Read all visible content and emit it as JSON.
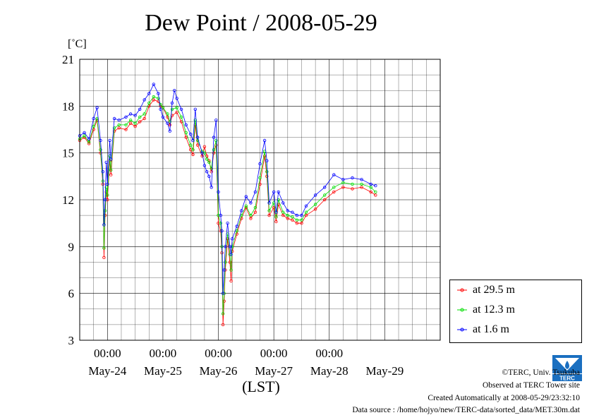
{
  "chart_data": {
    "type": "line",
    "title": "Dew Point / 2008-05-29",
    "ylabel": "[˚C]",
    "xlabel": "(LST)",
    "ylim": [
      3,
      21
    ],
    "yticks": [
      3,
      6,
      9,
      12,
      15,
      18,
      21
    ],
    "x_start": "2008-05-23 12:00",
    "x_end": "2008-05-29 24:00",
    "x_midnight_ticks": [
      "00:00",
      "00:00",
      "00:00",
      "00:00",
      "00:00"
    ],
    "x_day_labels": [
      "May-24",
      "May-25",
      "May-26",
      "May-27",
      "May-28",
      "May-29"
    ],
    "grid": true,
    "legend_position": "bottom-right-outside",
    "series": [
      {
        "name": "at 29.5 m",
        "color": "#ff0000",
        "points": [
          [
            "2008-05-23 12:00",
            15.8
          ],
          [
            "2008-05-23 14:00",
            16.0
          ],
          [
            "2008-05-23 16:00",
            15.6
          ],
          [
            "2008-05-23 18:00",
            16.5
          ],
          [
            "2008-05-23 19:30",
            17.1
          ],
          [
            "2008-05-23 21:00",
            15.0
          ],
          [
            "2008-05-23 22:00",
            13.0
          ],
          [
            "2008-05-23 22:30",
            8.3
          ],
          [
            "2008-05-23 23:00",
            11.0
          ],
          [
            "2008-05-23 23:30",
            12.5
          ],
          [
            "2008-05-24 00:00",
            12.0
          ],
          [
            "2008-05-24 01:00",
            14.5
          ],
          [
            "2008-05-24 01:30",
            13.6
          ],
          [
            "2008-05-24 03:00",
            16.4
          ],
          [
            "2008-05-24 05:00",
            16.6
          ],
          [
            "2008-05-24 08:00",
            16.5
          ],
          [
            "2008-05-24 10:00",
            16.9
          ],
          [
            "2008-05-24 12:00",
            16.7
          ],
          [
            "2008-05-24 14:00",
            17.0
          ],
          [
            "2008-05-24 16:00",
            17.2
          ],
          [
            "2008-05-24 18:00",
            18.0
          ],
          [
            "2008-05-24 20:00",
            18.4
          ],
          [
            "2008-05-24 22:00",
            18.3
          ],
          [
            "2008-05-24 23:00",
            18.0
          ],
          [
            "2008-05-25 00:00",
            17.9
          ],
          [
            "2008-05-25 02:00",
            17.3
          ],
          [
            "2008-05-25 03:00",
            16.8
          ],
          [
            "2008-05-25 04:00",
            17.4
          ],
          [
            "2008-05-25 06:00",
            17.6
          ],
          [
            "2008-05-25 08:00",
            17.0
          ],
          [
            "2008-05-25 10:00",
            16.0
          ],
          [
            "2008-05-25 12:00",
            15.2
          ],
          [
            "2008-05-25 13:00",
            14.9
          ],
          [
            "2008-05-25 14:00",
            16.8
          ],
          [
            "2008-05-25 15:00",
            15.5
          ],
          [
            "2008-05-25 17:00",
            14.8
          ],
          [
            "2008-05-25 18:00",
            15.4
          ],
          [
            "2008-05-25 19:00",
            14.8
          ],
          [
            "2008-05-25 20:00",
            14.5
          ],
          [
            "2008-05-25 21:00",
            13.8
          ],
          [
            "2008-05-25 22:00",
            15.0
          ],
          [
            "2008-05-25 23:00",
            15.5
          ],
          [
            "2008-05-26 00:00",
            10.5
          ],
          [
            "2008-05-26 01:00",
            10.0
          ],
          [
            "2008-05-26 01:30",
            8.6
          ],
          [
            "2008-05-26 02:00",
            4.0
          ],
          [
            "2008-05-26 02:30",
            5.5
          ],
          [
            "2008-05-26 03:00",
            7.5
          ],
          [
            "2008-05-26 04:00",
            9.5
          ],
          [
            "2008-05-26 05:00",
            8.0
          ],
          [
            "2008-05-26 05:30",
            6.8
          ],
          [
            "2008-05-26 06:00",
            8.7
          ],
          [
            "2008-05-26 08:00",
            9.8
          ],
          [
            "2008-05-26 10:00",
            10.8
          ],
          [
            "2008-05-26 12:00",
            11.5
          ],
          [
            "2008-05-26 14:00",
            10.8
          ],
          [
            "2008-05-26 16:00",
            11.2
          ],
          [
            "2008-05-26 18:00",
            13.0
          ],
          [
            "2008-05-26 20:00",
            14.8
          ],
          [
            "2008-05-26 21:00",
            13.5
          ],
          [
            "2008-05-26 22:00",
            11.0
          ],
          [
            "2008-05-27 00:00",
            11.5
          ],
          [
            "2008-05-27 01:00",
            10.6
          ],
          [
            "2008-05-27 02:00",
            11.7
          ],
          [
            "2008-05-27 04:00",
            11.0
          ],
          [
            "2008-05-27 06:00",
            10.8
          ],
          [
            "2008-05-27 08:00",
            10.7
          ],
          [
            "2008-05-27 10:00",
            10.5
          ],
          [
            "2008-05-27 12:00",
            10.5
          ],
          [
            "2008-05-27 14:00",
            11.0
          ],
          [
            "2008-05-27 18:00",
            11.4
          ],
          [
            "2008-05-27 22:00",
            12.0
          ],
          [
            "2008-05-28 02:00",
            12.5
          ],
          [
            "2008-05-28 06:00",
            12.8
          ],
          [
            "2008-05-28 10:00",
            12.7
          ],
          [
            "2008-05-28 14:00",
            12.8
          ],
          [
            "2008-05-28 18:00",
            12.5
          ],
          [
            "2008-05-28 20:00",
            12.3
          ]
        ]
      },
      {
        "name": "at 12.3 m",
        "color": "#00dd00",
        "points": [
          [
            "2008-05-23 12:00",
            15.9
          ],
          [
            "2008-05-23 14:00",
            16.1
          ],
          [
            "2008-05-23 16:00",
            15.7
          ],
          [
            "2008-05-23 18:00",
            16.7
          ],
          [
            "2008-05-23 19:30",
            17.2
          ],
          [
            "2008-05-23 21:00",
            15.2
          ],
          [
            "2008-05-23 22:00",
            13.2
          ],
          [
            "2008-05-23 22:30",
            8.9
          ],
          [
            "2008-05-23 23:00",
            11.3
          ],
          [
            "2008-05-23 23:30",
            12.8
          ],
          [
            "2008-05-24 00:00",
            12.3
          ],
          [
            "2008-05-24 01:00",
            14.8
          ],
          [
            "2008-05-24 01:30",
            13.9
          ],
          [
            "2008-05-24 03:00",
            16.6
          ],
          [
            "2008-05-24 05:00",
            16.8
          ],
          [
            "2008-05-24 08:00",
            16.8
          ],
          [
            "2008-05-24 10:00",
            17.1
          ],
          [
            "2008-05-24 12:00",
            16.9
          ],
          [
            "2008-05-24 14:00",
            17.3
          ],
          [
            "2008-05-24 16:00",
            17.5
          ],
          [
            "2008-05-24 18:00",
            18.2
          ],
          [
            "2008-05-24 20:00",
            18.6
          ],
          [
            "2008-05-24 22:00",
            18.5
          ],
          [
            "2008-05-24 23:00",
            18.1
          ],
          [
            "2008-05-25 00:00",
            17.9
          ],
          [
            "2008-05-25 02:00",
            17.5
          ],
          [
            "2008-05-25 03:00",
            17.0
          ],
          [
            "2008-05-25 04:00",
            17.8
          ],
          [
            "2008-05-25 06:00",
            17.9
          ],
          [
            "2008-05-25 08:00",
            17.3
          ],
          [
            "2008-05-25 10:00",
            16.3
          ],
          [
            "2008-05-25 12:00",
            15.5
          ],
          [
            "2008-05-25 13:00",
            15.2
          ],
          [
            "2008-05-25 14:00",
            17.1
          ],
          [
            "2008-05-25 15:00",
            15.8
          ],
          [
            "2008-05-25 17:00",
            15.1
          ],
          [
            "2008-05-25 18:00",
            15.0
          ],
          [
            "2008-05-25 19:00",
            14.6
          ],
          [
            "2008-05-25 20:00",
            14.4
          ],
          [
            "2008-05-25 21:00",
            14.0
          ],
          [
            "2008-05-25 22:00",
            15.2
          ],
          [
            "2008-05-25 23:00",
            15.8
          ],
          [
            "2008-05-26 00:00",
            11.0
          ],
          [
            "2008-05-26 01:00",
            10.5
          ],
          [
            "2008-05-26 01:30",
            9.0
          ],
          [
            "2008-05-26 02:00",
            4.7
          ],
          [
            "2008-05-26 02:30",
            6.0
          ],
          [
            "2008-05-26 03:00",
            8.0
          ],
          [
            "2008-05-26 04:00",
            9.8
          ],
          [
            "2008-05-26 05:00",
            8.5
          ],
          [
            "2008-05-26 05:30",
            7.5
          ],
          [
            "2008-05-26 06:00",
            9.0
          ],
          [
            "2008-05-26 08:00",
            10.0
          ],
          [
            "2008-05-26 10:00",
            11.0
          ],
          [
            "2008-05-26 12:00",
            11.6
          ],
          [
            "2008-05-26 14:00",
            11.0
          ],
          [
            "2008-05-26 16:00",
            11.5
          ],
          [
            "2008-05-26 18:00",
            13.4
          ],
          [
            "2008-05-26 20:00",
            15.1
          ],
          [
            "2008-05-26 21:00",
            13.8
          ],
          [
            "2008-05-26 22:00",
            11.3
          ],
          [
            "2008-05-27 00:00",
            11.8
          ],
          [
            "2008-05-27 01:00",
            10.9
          ],
          [
            "2008-05-27 02:00",
            12.0
          ],
          [
            "2008-05-27 04:00",
            11.2
          ],
          [
            "2008-05-27 06:00",
            11.0
          ],
          [
            "2008-05-27 08:00",
            10.9
          ],
          [
            "2008-05-27 10:00",
            10.7
          ],
          [
            "2008-05-27 12:00",
            10.7
          ],
          [
            "2008-05-27 14:00",
            11.2
          ],
          [
            "2008-05-27 18:00",
            11.7
          ],
          [
            "2008-05-27 22:00",
            12.3
          ],
          [
            "2008-05-28 02:00",
            12.8
          ],
          [
            "2008-05-28 06:00",
            13.1
          ],
          [
            "2008-05-28 10:00",
            13.0
          ],
          [
            "2008-05-28 14:00",
            13.0
          ],
          [
            "2008-05-28 18:00",
            12.8
          ],
          [
            "2008-05-28 20:00",
            12.5
          ]
        ]
      },
      {
        "name": "at 1.6 m",
        "color": "#0000ff",
        "points": [
          [
            "2008-05-23 12:00",
            16.1
          ],
          [
            "2008-05-23 14:00",
            16.3
          ],
          [
            "2008-05-23 16:00",
            15.9
          ],
          [
            "2008-05-23 18:00",
            17.2
          ],
          [
            "2008-05-23 19:30",
            17.9
          ],
          [
            "2008-05-23 21:00",
            15.8
          ],
          [
            "2008-05-23 22:00",
            13.8
          ],
          [
            "2008-05-23 22:30",
            10.4
          ],
          [
            "2008-05-23 23:00",
            12.0
          ],
          [
            "2008-05-23 23:30",
            14.4
          ],
          [
            "2008-05-24 00:00",
            13.0
          ],
          [
            "2008-05-24 01:00",
            15.8
          ],
          [
            "2008-05-24 01:30",
            14.6
          ],
          [
            "2008-05-24 03:00",
            17.2
          ],
          [
            "2008-05-24 05:00",
            17.1
          ],
          [
            "2008-05-24 08:00",
            17.3
          ],
          [
            "2008-05-24 10:00",
            17.5
          ],
          [
            "2008-05-24 12:00",
            17.4
          ],
          [
            "2008-05-24 14:00",
            17.8
          ],
          [
            "2008-05-24 16:00",
            18.4
          ],
          [
            "2008-05-24 18:00",
            18.8
          ],
          [
            "2008-05-24 20:00",
            19.4
          ],
          [
            "2008-05-24 22:00",
            18.8
          ],
          [
            "2008-05-24 23:00",
            17.8
          ],
          [
            "2008-05-25 00:00",
            17.3
          ],
          [
            "2008-05-25 02:00",
            16.9
          ],
          [
            "2008-05-25 03:00",
            16.4
          ],
          [
            "2008-05-25 04:00",
            18.2
          ],
          [
            "2008-05-25 05:00",
            19.0
          ],
          [
            "2008-05-25 06:00",
            18.5
          ],
          [
            "2008-05-25 08:00",
            17.8
          ],
          [
            "2008-05-25 10:00",
            16.8
          ],
          [
            "2008-05-25 12:00",
            16.2
          ],
          [
            "2008-05-25 13:00",
            15.8
          ],
          [
            "2008-05-25 14:00",
            17.8
          ],
          [
            "2008-05-25 15:00",
            16.0
          ],
          [
            "2008-05-25 17:00",
            15.0
          ],
          [
            "2008-05-25 18:00",
            14.2
          ],
          [
            "2008-05-25 19:00",
            13.8
          ],
          [
            "2008-05-25 20:00",
            13.5
          ],
          [
            "2008-05-25 21:00",
            12.8
          ],
          [
            "2008-05-25 22:00",
            16.0
          ],
          [
            "2008-05-25 23:00",
            17.1
          ],
          [
            "2008-05-26 00:00",
            12.5
          ],
          [
            "2008-05-26 01:00",
            11.0
          ],
          [
            "2008-05-26 01:30",
            10.0
          ],
          [
            "2008-05-26 02:00",
            6.0
          ],
          [
            "2008-05-26 02:30",
            7.5
          ],
          [
            "2008-05-26 03:00",
            9.0
          ],
          [
            "2008-05-26 04:00",
            10.5
          ],
          [
            "2008-05-26 05:00",
            9.0
          ],
          [
            "2008-05-26 05:30",
            8.5
          ],
          [
            "2008-05-26 06:00",
            9.5
          ],
          [
            "2008-05-26 08:00",
            10.3
          ],
          [
            "2008-05-26 10:00",
            11.3
          ],
          [
            "2008-05-26 12:00",
            12.2
          ],
          [
            "2008-05-26 14:00",
            11.8
          ],
          [
            "2008-05-26 16:00",
            12.5
          ],
          [
            "2008-05-26 18:00",
            14.3
          ],
          [
            "2008-05-26 20:00",
            15.8
          ],
          [
            "2008-05-26 21:00",
            14.5
          ],
          [
            "2008-05-26 22:00",
            11.8
          ],
          [
            "2008-05-27 00:00",
            12.5
          ],
          [
            "2008-05-27 01:00",
            11.2
          ],
          [
            "2008-05-27 02:00",
            12.5
          ],
          [
            "2008-05-27 04:00",
            11.8
          ],
          [
            "2008-05-27 06:00",
            11.3
          ],
          [
            "2008-05-27 08:00",
            11.2
          ],
          [
            "2008-05-27 10:00",
            11.0
          ],
          [
            "2008-05-27 12:00",
            11.0
          ],
          [
            "2008-05-27 14:00",
            11.6
          ],
          [
            "2008-05-27 18:00",
            12.3
          ],
          [
            "2008-05-27 22:00",
            12.8
          ],
          [
            "2008-05-28 02:00",
            13.6
          ],
          [
            "2008-05-28 06:00",
            13.3
          ],
          [
            "2008-05-28 10:00",
            13.4
          ],
          [
            "2008-05-28 14:00",
            13.3
          ],
          [
            "2008-05-28 18:00",
            13.0
          ],
          [
            "2008-05-28 20:00",
            12.9
          ]
        ]
      }
    ]
  },
  "footer": {
    "copyright": "©TERC, Univ. Tsukuba",
    "observed": "Observed at TERC Tower site",
    "created": "Created Automatically at 2008-05-29/23:32:10",
    "source": "Data source : /home/hojyo/new/TERC-data/sorted_data/MET.30m.dat",
    "logo_text": "TERC"
  },
  "colors": {
    "plot_border": "#000000",
    "grid": "#000000"
  }
}
